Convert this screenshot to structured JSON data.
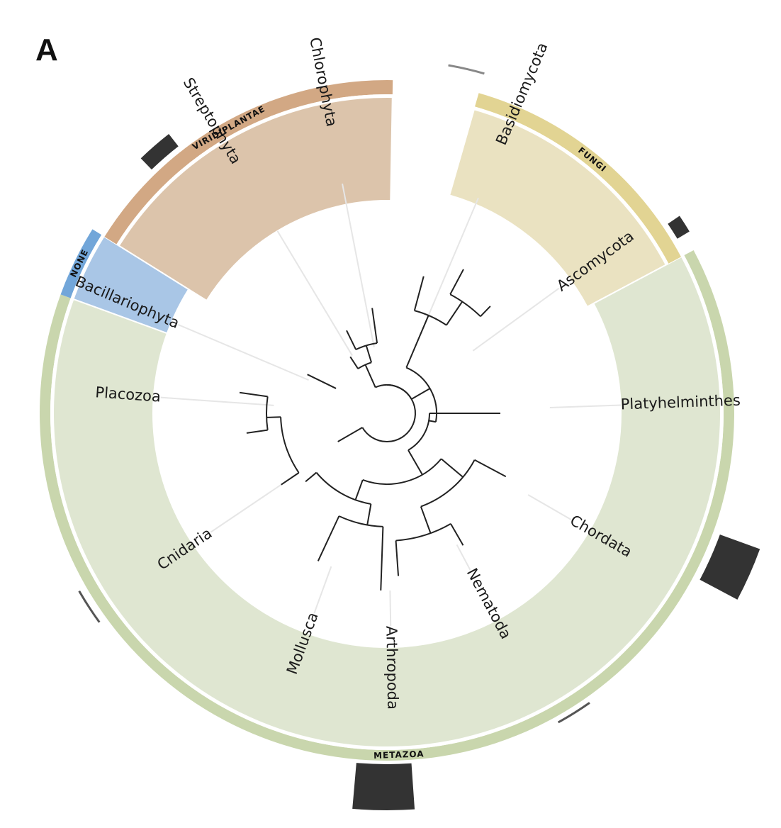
{
  "panel_label": "A",
  "colors": {
    "viridiplantae_band": "#dcc4ab",
    "viridiplantae_strip": "#d2a884",
    "fungi_band": "#eae2c1",
    "fungi_strip": "#e2d493",
    "metazoa_band": "#dfe6d1",
    "metazoa_strip": "#c9d6ad",
    "none_band": "#a9c6e6",
    "none_strip": "#72a6d9",
    "branch": "#222222",
    "leader": "#e6e6e6",
    "marker": "#333333"
  },
  "groups": [
    {
      "id": "viridiplantae",
      "name": "VIRIDIPLANTAE",
      "flip": false
    },
    {
      "id": "fungi",
      "name": "FUNGI",
      "flip": false
    },
    {
      "id": "metazoa",
      "name": "METAZOA",
      "flip": true
    },
    {
      "id": "none",
      "name": "NONE",
      "flip": false
    }
  ],
  "taxa": [
    {
      "id": "chlorophyta",
      "name": "Chlorophyta",
      "group": "viridiplantae"
    },
    {
      "id": "streptophyta",
      "name": "Streptophyta",
      "group": "viridiplantae"
    },
    {
      "id": "basidiomycota",
      "name": "Basidiomycota",
      "group": "fungi"
    },
    {
      "id": "ascomycota",
      "name": "Ascomycota",
      "group": "fungi"
    },
    {
      "id": "platyhelminthes",
      "name": "Platyhelminthes",
      "group": "metazoa"
    },
    {
      "id": "chordata",
      "name": "Chordata",
      "group": "metazoa"
    },
    {
      "id": "nematoda",
      "name": "Nematoda",
      "group": "metazoa"
    },
    {
      "id": "arthropoda",
      "name": "Arthropoda",
      "group": "metazoa"
    },
    {
      "id": "mollusca",
      "name": "Mollusca",
      "group": "metazoa"
    },
    {
      "id": "cnidaria",
      "name": "Cnidaria",
      "group": "metazoa"
    },
    {
      "id": "placozoa",
      "name": "Placozoa",
      "group": "metazoa"
    },
    {
      "id": "bacillariophyta",
      "name": "Bacillariophyta",
      "group": "none"
    }
  ]
}
